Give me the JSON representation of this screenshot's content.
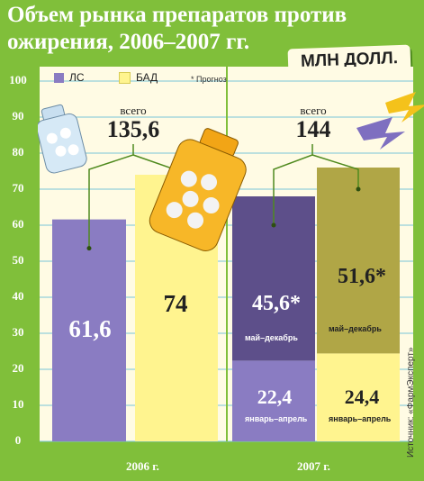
{
  "title": "Объем рынка препаратов против ожирения, 2006–2007 гг.",
  "unit_label": "МЛН ДОЛЛ.",
  "legend": {
    "ls": "ЛС",
    "bad": "БАД",
    "note": "* Прогноз"
  },
  "source": "Источник: «ФармЭксперт»",
  "colors": {
    "background": "#80bf3a",
    "plot_bg": "#fffbe4",
    "ls_2006": "#8a7cc2",
    "bad_2006": "#fff48f",
    "ls_forecast": "#5d4f8a",
    "bad_forecast": "#b0a646",
    "ls_actual": "#8a7cc2",
    "bad_actual": "#fff48f"
  },
  "chart_data": {
    "type": "bar",
    "title": "Объем рынка препаратов против ожирения, 2006–2007 гг.",
    "unit": "МЛН ДОЛЛ.",
    "ylim": [
      0,
      100
    ],
    "yticks": [
      "0",
      "10",
      "20",
      "30",
      "40",
      "50",
      "60",
      "70",
      "80",
      "90",
      "100"
    ],
    "categories": [
      "2006 г.",
      "2007 г."
    ],
    "groups": [
      {
        "category": "2006 г.",
        "total_word": "всего",
        "total": "135,6",
        "bars": [
          {
            "series": "ЛС",
            "value": 61.6,
            "label": "61,6"
          },
          {
            "series": "БАД",
            "value": 74,
            "label": "74"
          }
        ]
      },
      {
        "category": "2007 г.",
        "total_word": "всего",
        "total": "144",
        "bars": [
          {
            "series": "ЛС",
            "segments": [
              {
                "value": 22.4,
                "label": "22,4",
                "period": "январь–апрель",
                "forecast": false
              },
              {
                "value": 45.6,
                "label": "45,6*",
                "period": "май–декабрь",
                "forecast": true
              }
            ]
          },
          {
            "series": "БАД",
            "segments": [
              {
                "value": 24.4,
                "label": "24,4",
                "period": "январь–апрель",
                "forecast": false
              },
              {
                "value": 51.6,
                "label": "51,6*",
                "period": "май–декабрь",
                "forecast": true
              }
            ]
          }
        ]
      }
    ]
  }
}
